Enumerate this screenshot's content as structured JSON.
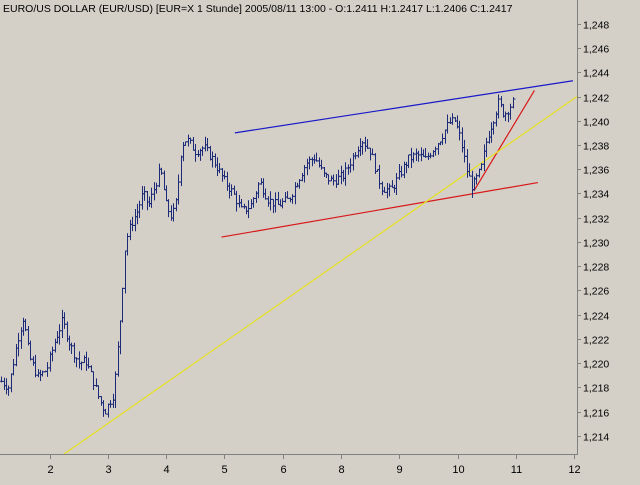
{
  "header_text": "EURO/US DOLLAR (EUR/USD) [EUR=X  1 Stunde] 2005/08/11 13:00 - O:1.2411 H:1.2417 L:1.2406 C:1.2417",
  "colors": {
    "plot_bg": "#d4d0c8",
    "frame": "#808080",
    "bars": "#1c2a78",
    "channel_top": "#1818c8",
    "channel_bottom": "#d81818",
    "trend_short": "#d81818",
    "trend_long": "#e6e020",
    "text": "#000000"
  },
  "chart_data": {
    "type": "ohlc",
    "title": "EURO/US DOLLAR (EUR/USD) [EUR=X  1 Stunde] 2005/08/11 13:00 - O:1.2411 H:1.2417 L:1.2406 C:1.2417",
    "x_ticks": [
      "2",
      "3",
      "4",
      "5",
      "6",
      "8",
      "9",
      "10",
      "11",
      "12"
    ],
    "x_tick_positions": [
      1.5,
      2.5,
      3.5,
      4.5,
      5.5,
      6.5,
      7.5,
      8.5,
      9.5,
      10.5
    ],
    "y_ticks": [
      "1,214",
      "1,216",
      "1,218",
      "1,220",
      "1,222",
      "1,224",
      "1,226",
      "1,228",
      "1,230",
      "1,232",
      "1,234",
      "1,236",
      "1,238",
      "1,240",
      "1,242",
      "1,244",
      "1,246",
      "1,248"
    ],
    "y_tick_values": [
      1.214,
      1.216,
      1.218,
      1.22,
      1.222,
      1.224,
      1.226,
      1.228,
      1.23,
      1.232,
      1.234,
      1.236,
      1.238,
      1.24,
      1.242,
      1.244,
      1.246,
      1.248
    ],
    "xlim": [
      0.65,
      10.55
    ],
    "ylim": [
      1.2125,
      1.2498
    ],
    "grid": false,
    "y_axis_side": "right",
    "price_path": [
      [
        0.67,
        1.2185
      ],
      [
        0.8,
        1.218
      ],
      [
        0.95,
        1.222
      ],
      [
        1.05,
        1.2238
      ],
      [
        1.15,
        1.2205
      ],
      [
        1.3,
        1.2188
      ],
      [
        1.45,
        1.2195
      ],
      [
        1.6,
        1.222
      ],
      [
        1.72,
        1.2235
      ],
      [
        1.85,
        1.2215
      ],
      [
        2.0,
        1.22
      ],
      [
        2.12,
        1.2202
      ],
      [
        2.25,
        1.2185
      ],
      [
        2.35,
        1.217
      ],
      [
        2.45,
        1.216
      ],
      [
        2.6,
        1.2175
      ],
      [
        2.7,
        1.223
      ],
      [
        2.8,
        1.23
      ],
      [
        2.9,
        1.2315
      ],
      [
        3.0,
        1.2325
      ],
      [
        3.1,
        1.234
      ],
      [
        3.2,
        1.233
      ],
      [
        3.3,
        1.2345
      ],
      [
        3.4,
        1.236
      ],
      [
        3.5,
        1.233
      ],
      [
        3.6,
        1.232
      ],
      [
        3.68,
        1.2335
      ],
      [
        3.76,
        1.238
      ],
      [
        3.85,
        1.2385
      ],
      [
        4.0,
        1.2375
      ],
      [
        4.15,
        1.2378
      ],
      [
        4.3,
        1.2368
      ],
      [
        4.5,
        1.235
      ],
      [
        4.65,
        1.234
      ],
      [
        4.8,
        1.2325
      ],
      [
        4.95,
        1.233
      ],
      [
        5.1,
        1.235
      ],
      [
        5.25,
        1.2335
      ],
      [
        5.4,
        1.233
      ],
      [
        5.6,
        1.2335
      ],
      [
        5.75,
        1.235
      ],
      [
        5.9,
        1.2365
      ],
      [
        6.05,
        1.237
      ],
      [
        6.2,
        1.2355
      ],
      [
        6.35,
        1.235
      ],
      [
        6.55,
        1.2355
      ],
      [
        6.7,
        1.237
      ],
      [
        6.85,
        1.2385
      ],
      [
        7.0,
        1.2375
      ],
      [
        7.1,
        1.2358
      ],
      [
        7.2,
        1.2345
      ],
      [
        7.35,
        1.2342
      ],
      [
        7.5,
        1.2355
      ],
      [
        7.65,
        1.2368
      ],
      [
        7.8,
        1.2372
      ],
      [
        7.95,
        1.2368
      ],
      [
        8.05,
        1.2375
      ],
      [
        8.2,
        1.2385
      ],
      [
        8.35,
        1.2398
      ],
      [
        8.45,
        1.24
      ],
      [
        8.55,
        1.2385
      ],
      [
        8.65,
        1.236
      ],
      [
        8.75,
        1.2345
      ],
      [
        8.9,
        1.236
      ],
      [
        9.0,
        1.2385
      ],
      [
        9.1,
        1.24
      ],
      [
        9.2,
        1.2415
      ],
      [
        9.3,
        1.2405
      ],
      [
        9.4,
        1.2412
      ],
      [
        9.48,
        1.2417
      ]
    ],
    "lines": [
      {
        "id": "channel-top",
        "color_key": "channel_top",
        "from": [
          4.68,
          1.239
        ],
        "to": [
          10.48,
          1.2433
        ]
      },
      {
        "id": "channel-bottom",
        "color_key": "channel_bottom",
        "from": [
          4.45,
          1.2304
        ],
        "to": [
          9.88,
          1.2349
        ]
      },
      {
        "id": "trend-short",
        "color_key": "trend_short",
        "from": [
          8.78,
          1.2342
        ],
        "to": [
          9.82,
          1.2425
        ]
      },
      {
        "id": "trend-long",
        "color_key": "trend_long",
        "from": [
          1.75,
          1.2125
        ],
        "to": [
          10.55,
          1.242
        ]
      }
    ]
  }
}
